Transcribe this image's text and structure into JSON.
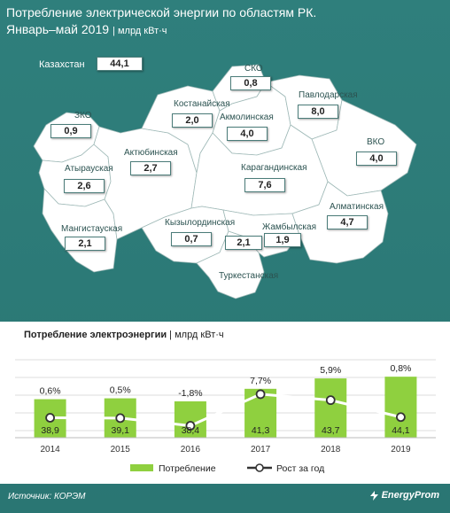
{
  "title": {
    "line1": "Потребление электрической энергии по областям РК.",
    "line2": "Январь–май 2019",
    "unit": "| млрд кВт·ч"
  },
  "map": {
    "total_label": "Казахстан",
    "total_value": "44,1",
    "regions": [
      {
        "id": "zko",
        "name": "ЗКО",
        "value": "0,9"
      },
      {
        "id": "atyrau",
        "name": "Атырауская",
        "value": "2,6"
      },
      {
        "id": "mangistau",
        "name": "Мангистауская",
        "value": "2,1"
      },
      {
        "id": "aktobe",
        "name": "Актюбинская",
        "value": "2,7"
      },
      {
        "id": "kostanay",
        "name": "Костанайская",
        "value": "2,0"
      },
      {
        "id": "sko",
        "name": "СКО",
        "value": "0,8"
      },
      {
        "id": "akmola",
        "name": "Акмолинская",
        "value": "4,0"
      },
      {
        "id": "pavlodar",
        "name": "Павлодарская",
        "value": "8,0"
      },
      {
        "id": "vko",
        "name": "ВКО",
        "value": "4,0"
      },
      {
        "id": "karaganda",
        "name": "Карагандинская",
        "value": "7,6"
      },
      {
        "id": "kyzylorda",
        "name": "Кызылординская",
        "value": "0,7"
      },
      {
        "id": "turkestan",
        "name": "Туркестанская",
        "value": "2,1"
      },
      {
        "id": "zhambyl",
        "name": "Жамбылская",
        "value": "1,9"
      },
      {
        "id": "almaty",
        "name": "Алматинская",
        "value": "4,7"
      }
    ]
  },
  "chart_data": {
    "type": "bar",
    "title": "Потребление электроэнергии",
    "unit": "| млрд кВт·ч",
    "categories": [
      "2014",
      "2015",
      "2016",
      "2017",
      "2018",
      "2019"
    ],
    "series": [
      {
        "name": "Потребление",
        "values": [
          38.9,
          39.1,
          38.4,
          41.3,
          43.7,
          44.1
        ],
        "labels": [
          "38,9",
          "39,1",
          "38,4",
          "41,3",
          "43,7",
          "44,1"
        ]
      },
      {
        "name": "Рост за год",
        "type": "line",
        "values": [
          0.6,
          0.5,
          -1.8,
          7.7,
          5.9,
          0.8
        ],
        "labels": [
          "0,6%",
          "0,5%",
          "-1,8%",
          "7,7%",
          "5,9%",
          "0,8%"
        ]
      }
    ],
    "legend_position": "bottom",
    "grid": true
  },
  "colors": {
    "background": "#2e7d7a",
    "bar": "#8fd03f",
    "line": "#ffffff"
  },
  "footer": {
    "source": "Источник: КОРЭМ",
    "brand": "EnergyProm"
  }
}
